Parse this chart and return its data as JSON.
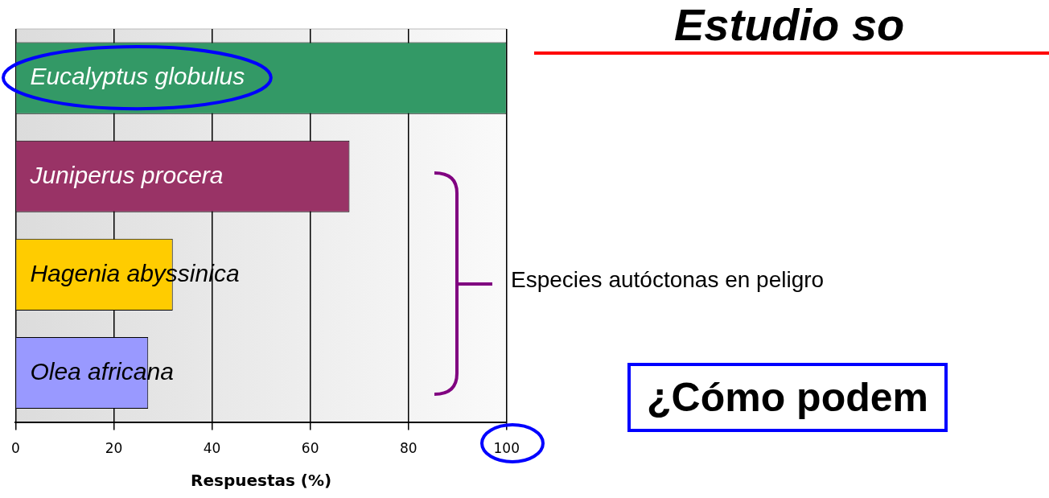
{
  "chart_data": {
    "type": "bar",
    "orientation": "horizontal",
    "title": "Estudio so",
    "xlabel": "Respuestas (%)",
    "categories": [
      "Eucalyptus globulus",
      "Juniperus procera",
      "Hagenia abyssinica",
      "Olea africana"
    ],
    "values": [
      100,
      68,
      32,
      27
    ],
    "colors": [
      "#339966",
      "#993366",
      "#ffcc00",
      "#9999ff"
    ],
    "xlim": [
      0,
      100
    ],
    "xticks": [
      0,
      20,
      40,
      60,
      80,
      100
    ],
    "grid": "x",
    "legend": false,
    "annotations": [
      "Especies autóctonas en peligro",
      "¿Cómo podem"
    ]
  }
}
